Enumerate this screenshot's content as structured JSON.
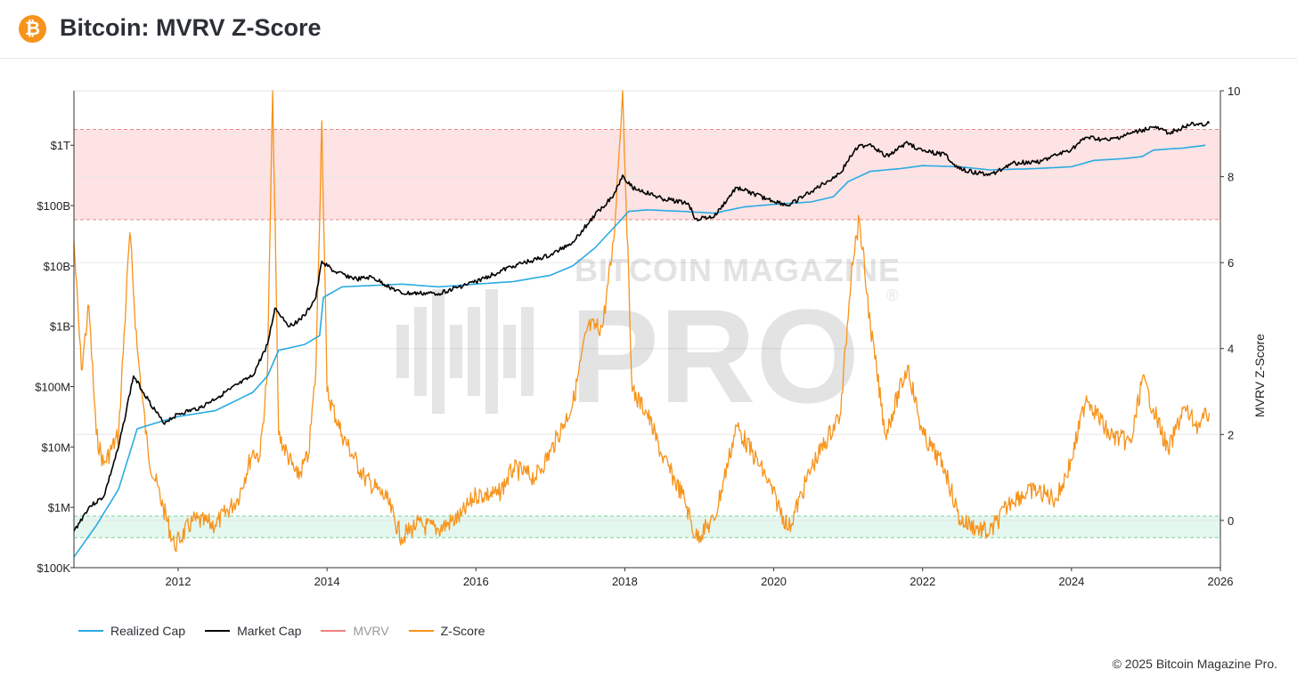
{
  "header": {
    "logo_glyph": "₿",
    "title": "Bitcoin: MVRV Z-Score"
  },
  "watermark": {
    "line1": "BITCOIN MAGAZINE",
    "line2": "PRO",
    "reg": "®"
  },
  "legend": [
    {
      "label": "Realized Cap",
      "color": "#29abe2"
    },
    {
      "label": "Market Cap",
      "color": "#000000"
    },
    {
      "label": "MVRV",
      "color": "#f08080"
    },
    {
      "label": "Z-Score",
      "color": "#f7931a"
    }
  ],
  "footer": {
    "copyright": "© 2025 Bitcoin Magazine Pro."
  },
  "colors": {
    "red_zone": "#fde3e3",
    "green_zone": "#e4f7ee",
    "red_line": "#e88a8a",
    "green_line": "#7fcf9f"
  },
  "chart_data": {
    "type": "line",
    "xlim": [
      2010.6,
      2026
    ],
    "x_ticks": [
      "2012",
      "2014",
      "2016",
      "2018",
      "2020",
      "2022",
      "2024",
      "2026"
    ],
    "y_left": {
      "scale": "log",
      "ticks": [
        "$100K",
        "$1M",
        "$10M",
        "$100M",
        "$1B",
        "$10B",
        "$100B",
        "$1T"
      ],
      "ylim": [
        100000,
        8000000000000
      ]
    },
    "y_right": {
      "label": "MVRV Z-Score",
      "ticks": [
        "0",
        "2",
        "4",
        "6",
        "8",
        "10"
      ],
      "ylim": [
        -1.1,
        10
      ]
    },
    "zones": {
      "red": [
        7,
        9.1
      ],
      "green": [
        -0.4,
        0.1
      ]
    },
    "series": [
      {
        "name": "Realized Cap",
        "axis": "left",
        "color": "#29abe2",
        "points": [
          [
            2010.6,
            150000.0
          ],
          [
            2010.9,
            500000.0
          ],
          [
            2011.2,
            2000000.0
          ],
          [
            2011.45,
            20000000.0
          ],
          [
            2011.7,
            25000000.0
          ],
          [
            2012.0,
            32000000.0
          ],
          [
            2012.5,
            40000000.0
          ],
          [
            2013.0,
            80000000.0
          ],
          [
            2013.2,
            150000000.0
          ],
          [
            2013.35,
            400000000.0
          ],
          [
            2013.7,
            500000000.0
          ],
          [
            2013.9,
            700000000.0
          ],
          [
            2013.95,
            3000000000.0
          ],
          [
            2014.2,
            4500000000.0
          ],
          [
            2015.0,
            5000000000.0
          ],
          [
            2015.5,
            4500000000.0
          ],
          [
            2016.0,
            5000000000.0
          ],
          [
            2016.5,
            5500000000.0
          ],
          [
            2017.0,
            7000000000.0
          ],
          [
            2017.3,
            10000000000.0
          ],
          [
            2017.6,
            20000000000.0
          ],
          [
            2017.9,
            50000000000.0
          ],
          [
            2018.05,
            80000000000.0
          ],
          [
            2018.3,
            85000000000.0
          ],
          [
            2018.8,
            80000000000.0
          ],
          [
            2019.2,
            75000000000.0
          ],
          [
            2019.6,
            95000000000.0
          ],
          [
            2020.0,
            105000000000.0
          ],
          [
            2020.5,
            115000000000.0
          ],
          [
            2020.8,
            140000000000.0
          ],
          [
            2021.0,
            250000000000.0
          ],
          [
            2021.3,
            370000000000.0
          ],
          [
            2021.7,
            410000000000.0
          ],
          [
            2022.0,
            460000000000.0
          ],
          [
            2022.5,
            440000000000.0
          ],
          [
            2022.9,
            390000000000.0
          ],
          [
            2023.5,
            410000000000.0
          ],
          [
            2024.0,
            440000000000.0
          ],
          [
            2024.3,
            560000000000.0
          ],
          [
            2024.7,
            600000000000.0
          ],
          [
            2024.95,
            650000000000.0
          ],
          [
            2025.1,
            830000000000.0
          ],
          [
            2025.5,
            900000000000.0
          ],
          [
            2025.8,
            1000000000000.0
          ]
        ]
      },
      {
        "name": "Market Cap",
        "axis": "left",
        "color": "#000000",
        "points": [
          [
            2010.6,
            400000.0
          ],
          [
            2010.8,
            1000000.0
          ],
          [
            2011.0,
            1500000.0
          ],
          [
            2011.2,
            10000000.0
          ],
          [
            2011.4,
            150000000.0
          ],
          [
            2011.6,
            60000000.0
          ],
          [
            2011.8,
            25000000.0
          ],
          [
            2012.0,
            35000000.0
          ],
          [
            2012.3,
            45000000.0
          ],
          [
            2012.7,
            90000000.0
          ],
          [
            2013.0,
            150000000.0
          ],
          [
            2013.2,
            500000000.0
          ],
          [
            2013.3,
            2000000000.0
          ],
          [
            2013.5,
            1000000000.0
          ],
          [
            2013.7,
            1500000000.0
          ],
          [
            2013.85,
            3000000000.0
          ],
          [
            2013.93,
            12000000000.0
          ],
          [
            2014.1,
            8000000000.0
          ],
          [
            2014.4,
            6000000000.0
          ],
          [
            2014.6,
            6500000000.0
          ],
          [
            2015.0,
            3500000000.0
          ],
          [
            2015.5,
            3500000000.0
          ],
          [
            2016.0,
            5500000000.0
          ],
          [
            2016.5,
            10000000000.0
          ],
          [
            2017.0,
            15000000000.0
          ],
          [
            2017.3,
            25000000000.0
          ],
          [
            2017.6,
            70000000000.0
          ],
          [
            2017.85,
            150000000000.0
          ],
          [
            2017.97,
            320000000000.0
          ],
          [
            2018.1,
            200000000000.0
          ],
          [
            2018.5,
            130000000000.0
          ],
          [
            2018.85,
            110000000000.0
          ],
          [
            2018.95,
            60000000000.0
          ],
          [
            2019.2,
            65000000000.0
          ],
          [
            2019.5,
            200000000000.0
          ],
          [
            2019.9,
            130000000000.0
          ],
          [
            2020.2,
            100000000000.0
          ],
          [
            2020.5,
            170000000000.0
          ],
          [
            2020.9,
            350000000000.0
          ],
          [
            2021.1,
            900000000000.0
          ],
          [
            2021.3,
            1050000000000.0
          ],
          [
            2021.5,
            650000000000.0
          ],
          [
            2021.8,
            1100000000000.0
          ],
          [
            2022.0,
            800000000000.0
          ],
          [
            2022.3,
            700000000000.0
          ],
          [
            2022.5,
            400000000000.0
          ],
          [
            2022.9,
            320000000000.0
          ],
          [
            2023.2,
            500000000000.0
          ],
          [
            2023.6,
            550000000000.0
          ],
          [
            2024.0,
            850000000000.0
          ],
          [
            2024.2,
            1350000000000.0
          ],
          [
            2024.5,
            1200000000000.0
          ],
          [
            2024.9,
            1700000000000.0
          ],
          [
            2025.1,
            2000000000000.0
          ],
          [
            2025.3,
            1600000000000.0
          ],
          [
            2025.6,
            2200000000000.0
          ],
          [
            2025.85,
            2300000000000.0
          ]
        ]
      },
      {
        "name": "Z-Score",
        "axis": "right",
        "color": "#f7931a",
        "points": [
          [
            2010.6,
            6.5
          ],
          [
            2010.7,
            3.5
          ],
          [
            2010.8,
            5
          ],
          [
            2010.9,
            2
          ],
          [
            2011.0,
            1.3
          ],
          [
            2011.2,
            2
          ],
          [
            2011.35,
            6.7
          ],
          [
            2011.45,
            4
          ],
          [
            2011.6,
            1.5
          ],
          [
            2011.8,
            0.3
          ],
          [
            2011.95,
            -0.6
          ],
          [
            2012.2,
            0
          ],
          [
            2012.5,
            -0.1
          ],
          [
            2012.8,
            0.5
          ],
          [
            2013.0,
            1.6
          ],
          [
            2013.1,
            1.5
          ],
          [
            2013.2,
            3.5
          ],
          [
            2013.27,
            10
          ],
          [
            2013.35,
            2
          ],
          [
            2013.6,
            1
          ],
          [
            2013.75,
            1.5
          ],
          [
            2013.85,
            3.5
          ],
          [
            2013.93,
            9.3
          ],
          [
            2014.0,
            3
          ],
          [
            2014.2,
            2
          ],
          [
            2014.5,
            1
          ],
          [
            2014.8,
            0.5
          ],
          [
            2015.0,
            -0.4
          ],
          [
            2015.2,
            -0.1
          ],
          [
            2015.5,
            -0.2
          ],
          [
            2015.8,
            0.1
          ],
          [
            2016.0,
            0.6
          ],
          [
            2016.3,
            0.6
          ],
          [
            2016.5,
            1.2
          ],
          [
            2016.8,
            1
          ],
          [
            2017.0,
            1.6
          ],
          [
            2017.3,
            2.7
          ],
          [
            2017.5,
            4.5
          ],
          [
            2017.7,
            4.5
          ],
          [
            2017.85,
            6.5
          ],
          [
            2017.97,
            10
          ],
          [
            2018.1,
            3
          ],
          [
            2018.3,
            2.5
          ],
          [
            2018.5,
            1.5
          ],
          [
            2018.8,
            0.5
          ],
          [
            2018.95,
            -0.4
          ],
          [
            2019.2,
            0
          ],
          [
            2019.5,
            2.2
          ],
          [
            2019.9,
            1
          ],
          [
            2020.2,
            -0.2
          ],
          [
            2020.5,
            1.2
          ],
          [
            2020.9,
            2.5
          ],
          [
            2021.05,
            6
          ],
          [
            2021.15,
            7
          ],
          [
            2021.3,
            4.5
          ],
          [
            2021.5,
            2
          ],
          [
            2021.8,
            3.6
          ],
          [
            2022.0,
            2
          ],
          [
            2022.3,
            1.2
          ],
          [
            2022.5,
            0
          ],
          [
            2022.9,
            -0.3
          ],
          [
            2023.2,
            0.5
          ],
          [
            2023.5,
            0.7
          ],
          [
            2023.8,
            0.5
          ],
          [
            2024.0,
            1.4
          ],
          [
            2024.2,
            2.9
          ],
          [
            2024.5,
            2
          ],
          [
            2024.8,
            1.8
          ],
          [
            2024.95,
            3.3
          ],
          [
            2025.1,
            2.6
          ],
          [
            2025.3,
            1.6
          ],
          [
            2025.5,
            2.6
          ],
          [
            2025.7,
            2.2
          ],
          [
            2025.85,
            2.5
          ]
        ]
      }
    ]
  }
}
